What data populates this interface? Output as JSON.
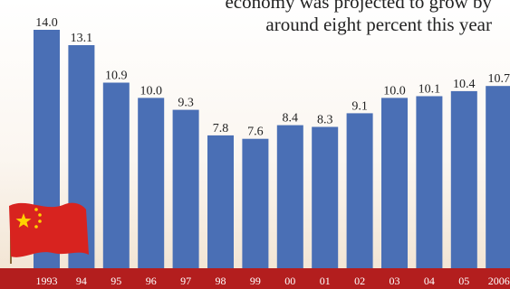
{
  "annotation": {
    "line1": "economy was projected to grow by",
    "line2": "around eight percent this year"
  },
  "colors": {
    "bar": "#4a6fb5",
    "axis_band": "#b31e1e",
    "flag_red": "#d8231f",
    "flag_star": "#ffd200"
  },
  "icons": {
    "flag": "china-flag-icon"
  },
  "chart_data": {
    "type": "bar",
    "categories": [
      "1993",
      "94",
      "95",
      "96",
      "97",
      "98",
      "99",
      "00",
      "01",
      "02",
      "03",
      "04",
      "05",
      "2006"
    ],
    "series": [
      {
        "values": [
          14.0,
          13.1,
          10.9,
          10.0,
          9.3,
          7.8,
          7.6,
          8.4,
          8.3,
          9.1,
          10.0,
          10.1,
          10.4,
          10.7
        ]
      }
    ],
    "value_labels": [
      "14.0",
      "13.1",
      "10.9",
      "10.0",
      "9.3",
      "7.8",
      "7.6",
      "8.4",
      "8.3",
      "9.1",
      "10.0",
      "10.1",
      "10.4",
      "10.7"
    ],
    "ylim": [
      0,
      15
    ],
    "grid": false,
    "legend": "none"
  }
}
